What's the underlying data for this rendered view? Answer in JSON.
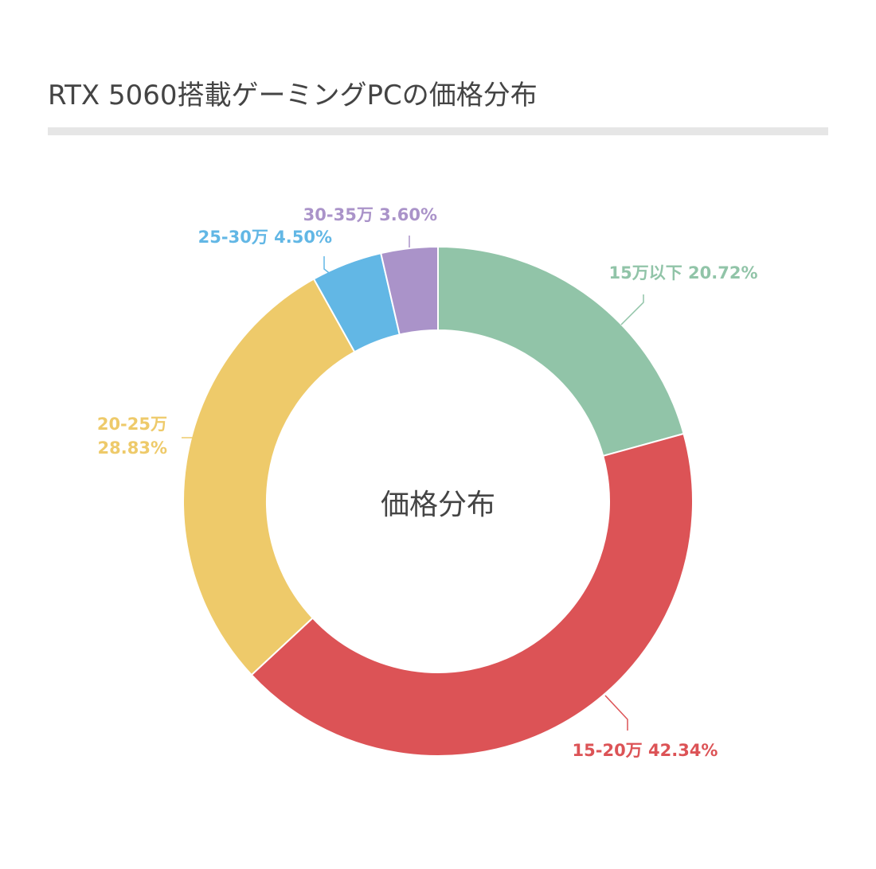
{
  "title": "RTX 5060搭載ゲーミングPCの価格分布",
  "chart_data": {
    "type": "pie",
    "subtype": "donut",
    "title": "RTX 5060搭載ゲーミングPCの価格分布",
    "center_label": "価格分布",
    "slices": [
      {
        "label": "15万以下",
        "value_label": "20.72%",
        "value": 20.72,
        "color": "#91c4a8"
      },
      {
        "label": "15-20万",
        "value_label": "42.34%",
        "value": 42.34,
        "color": "#dc5356"
      },
      {
        "label": "20-25万",
        "value_label": "28.83%",
        "value": 28.83,
        "color": "#eeca6a"
      },
      {
        "label": "25-30万",
        "value_label": "4.50%",
        "value": 4.5,
        "color": "#62b7e5"
      },
      {
        "label": "30-35万",
        "value_label": "3.60%",
        "value": 3.6,
        "color": "#aa93c9"
      }
    ],
    "legend": "none",
    "label_placement": "outside-with-leader-lines"
  }
}
